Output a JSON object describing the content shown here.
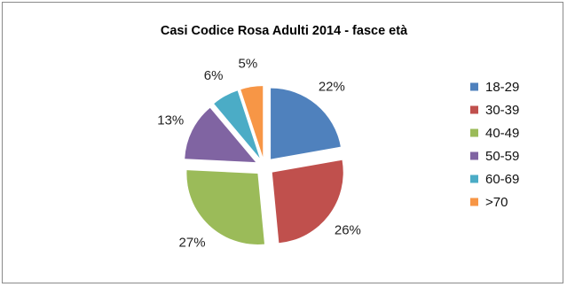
{
  "chart_data": {
    "type": "pie",
    "title": "Casi Codice Rosa Adulti 2014 - fasce età",
    "legend_position": "right",
    "slices": [
      {
        "label": "18-29",
        "value": 22,
        "value_label": "22%",
        "color": "#4F81BD"
      },
      {
        "label": "30-39",
        "value": 26,
        "value_label": "26%",
        "color": "#C0504D"
      },
      {
        "label": "40-49",
        "value": 27,
        "value_label": "27%",
        "color": "#9BBB59"
      },
      {
        "label": "50-59",
        "value": 13,
        "value_label": "13%",
        "color": "#8064A2"
      },
      {
        "label": "60-69",
        "value": 6,
        "value_label": "6%",
        "color": "#4BACC6"
      },
      {
        "label": ">70",
        "value": 5,
        "value_label": "5%",
        "color": "#F79646"
      }
    ]
  }
}
